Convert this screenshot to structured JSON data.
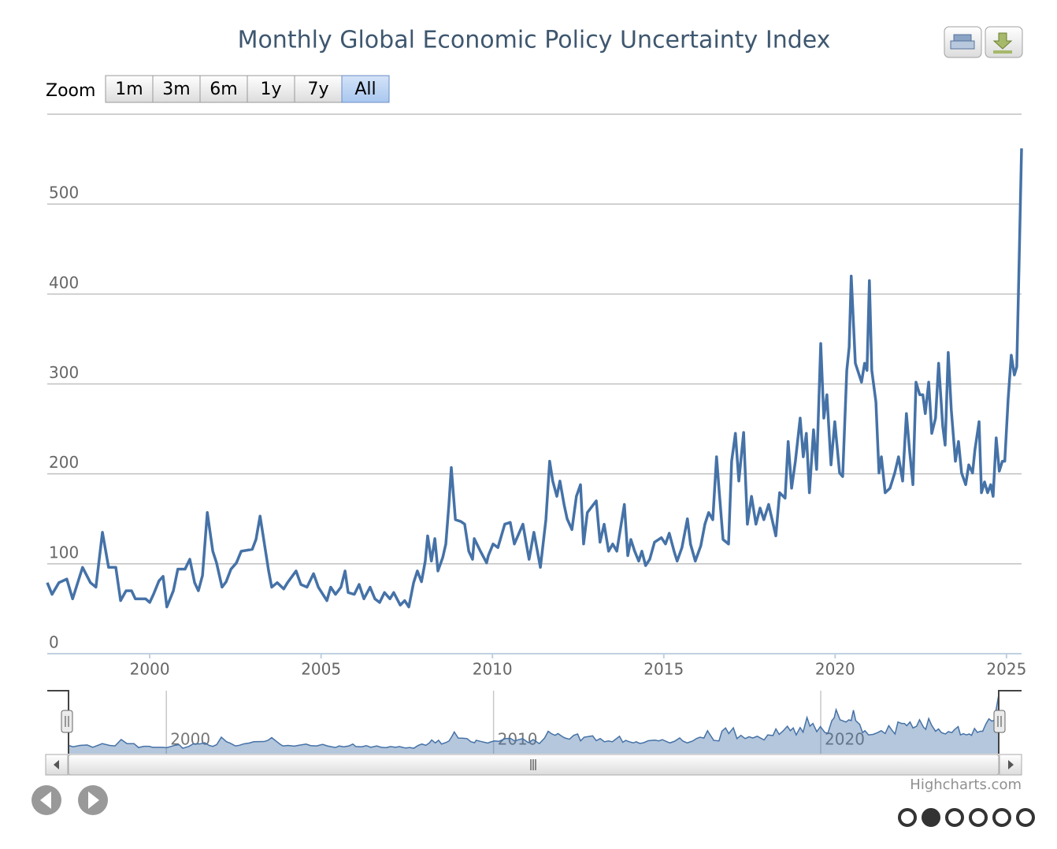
{
  "chart_data": {
    "type": "line",
    "title": "Monthly Global Economic Policy Uncertainty Index",
    "zoom": {
      "label": "Zoom",
      "buttons": [
        "1m",
        "3m",
        "6m",
        "1y",
        "7y",
        "All"
      ],
      "selected": "All"
    },
    "credits": "Highcharts.com",
    "color": "#4572a7",
    "grid": true,
    "xlim": [
      1997.01,
      2025.44
    ],
    "xticks": [
      2000,
      2005,
      2010,
      2015,
      2020,
      2025
    ],
    "ylim": [
      0,
      600
    ],
    "yticks": [
      0,
      100,
      200,
      300,
      400,
      500
    ],
    "navigator": {
      "xticks": [
        2000,
        2010,
        2020
      ]
    },
    "x": [
      1997.01,
      1997.15,
      1997.35,
      1997.58,
      1997.75,
      1998.04,
      1998.27,
      1998.43,
      1998.62,
      1998.8,
      1999.01,
      1999.15,
      1999.31,
      1999.47,
      1999.58,
      1999.88,
      2000.0,
      2000.11,
      2000.27,
      2000.39,
      2000.5,
      2000.69,
      2000.82,
      2001.03,
      2001.17,
      2001.31,
      2001.42,
      2001.54,
      2001.68,
      2001.84,
      2001.95,
      2002.11,
      2002.23,
      2002.37,
      2002.53,
      2002.67,
      2002.99,
      2003.1,
      2003.22,
      2003.38,
      2003.47,
      2003.56,
      2003.72,
      2003.91,
      2004.02,
      2004.27,
      2004.41,
      2004.59,
      2004.78,
      2004.92,
      2005.17,
      2005.28,
      2005.42,
      2005.58,
      2005.7,
      2005.79,
      2005.97,
      2006.11,
      2006.25,
      2006.43,
      2006.57,
      2006.71,
      2006.85,
      2007.01,
      2007.12,
      2007.31,
      2007.44,
      2007.56,
      2007.7,
      2007.81,
      2007.93,
      2008.04,
      2008.11,
      2008.22,
      2008.32,
      2008.41,
      2008.55,
      2008.64,
      2008.73,
      2008.8,
      2008.92,
      2009.08,
      2009.19,
      2009.31,
      2009.42,
      2009.47,
      2009.65,
      2009.83,
      2009.88,
      2010.02,
      2010.16,
      2010.36,
      2010.52,
      2010.64,
      2010.89,
      2010.98,
      2011.07,
      2011.21,
      2011.4,
      2011.56,
      2011.67,
      2011.76,
      2011.88,
      2011.97,
      2012.09,
      2012.18,
      2012.32,
      2012.45,
      2012.57,
      2012.66,
      2012.77,
      2013.03,
      2013.14,
      2013.26,
      2013.39,
      2013.51,
      2013.63,
      2013.85,
      2013.95,
      2014.04,
      2014.15,
      2014.27,
      2014.36,
      2014.47,
      2014.59,
      2014.73,
      2014.93,
      2015.05,
      2015.16,
      2015.3,
      2015.39,
      2015.53,
      2015.69,
      2015.78,
      2015.92,
      2016.08,
      2016.2,
      2016.31,
      2016.43,
      2016.54,
      2016.61,
      2016.73,
      2016.89,
      2016.98,
      2017.09,
      2017.19,
      2017.33,
      2017.44,
      2017.56,
      2017.69,
      2017.81,
      2017.92,
      2018.06,
      2018.27,
      2018.38,
      2018.54,
      2018.63,
      2018.73,
      2018.84,
      2018.98,
      2019.07,
      2019.16,
      2019.25,
      2019.37,
      2019.46,
      2019.58,
      2019.67,
      2019.76,
      2019.88,
      2019.99,
      2020.13,
      2020.22,
      2020.34,
      2020.41,
      2020.47,
      2020.59,
      2020.77,
      2020.86,
      2020.93,
      2021.0,
      2021.07,
      2021.19,
      2021.28,
      2021.35,
      2021.46,
      2021.6,
      2021.74,
      2021.85,
      2021.97,
      2022.08,
      2022.17,
      2022.27,
      2022.36,
      2022.47,
      2022.56,
      2022.63,
      2022.73,
      2022.82,
      2022.93,
      2023.02,
      2023.14,
      2023.21,
      2023.3,
      2023.39,
      2023.51,
      2023.6,
      2023.69,
      2023.81,
      2023.9,
      2024.01,
      2024.08,
      2024.2,
      2024.27,
      2024.36,
      2024.45,
      2024.54,
      2024.61,
      2024.7,
      2024.79,
      2024.88,
      2024.95,
      2025.05,
      2025.14,
      2025.23,
      2025.3,
      2025.37,
      2025.44
    ],
    "values": [
      79,
      66,
      79,
      83,
      61,
      96,
      79,
      74,
      135,
      96,
      96,
      59,
      70,
      70,
      61,
      61,
      57,
      66,
      81,
      86,
      52,
      70,
      94,
      94,
      105,
      79,
      70,
      87,
      157,
      114,
      101,
      74,
      80,
      94,
      101,
      114,
      116,
      127,
      153,
      114,
      92,
      74,
      79,
      72,
      79,
      92,
      77,
      74,
      89,
      74,
      59,
      74,
      66,
      74,
      92,
      68,
      66,
      77,
      61,
      74,
      61,
      57,
      68,
      61,
      68,
      54,
      59,
      52,
      79,
      92,
      80,
      103,
      131,
      103,
      128,
      92,
      107,
      122,
      166,
      207,
      149,
      147,
      144,
      114,
      105,
      128,
      114,
      101,
      109,
      122,
      118,
      144,
      146,
      122,
      144,
      124,
      105,
      135,
      96,
      149,
      214,
      192,
      175,
      192,
      166,
      150,
      138,
      175,
      188,
      122,
      157,
      170,
      124,
      144,
      114,
      122,
      114,
      166,
      109,
      127,
      114,
      103,
      114,
      98,
      105,
      124,
      129,
      122,
      134,
      114,
      103,
      118,
      150,
      122,
      103,
      120,
      144,
      157,
      149,
      219,
      184,
      127,
      122,
      214,
      245,
      192,
      246,
      144,
      175,
      144,
      162,
      149,
      166,
      131,
      179,
      173,
      236,
      184,
      214,
      262,
      219,
      245,
      179,
      249,
      205,
      345,
      262,
      288,
      210,
      258,
      201,
      197,
      315,
      341,
      420,
      323,
      302,
      323,
      315,
      415,
      315,
      280,
      201,
      219,
      179,
      184,
      201,
      219,
      192,
      267,
      227,
      188,
      302,
      288,
      288,
      267,
      302,
      245,
      262,
      323,
      253,
      232,
      335,
      271,
      214,
      236,
      201,
      188,
      210,
      201,
      227,
      258,
      179,
      191,
      179,
      188,
      175,
      240,
      203,
      214,
      214,
      284,
      332,
      310,
      319,
      437,
      562
    ]
  }
}
